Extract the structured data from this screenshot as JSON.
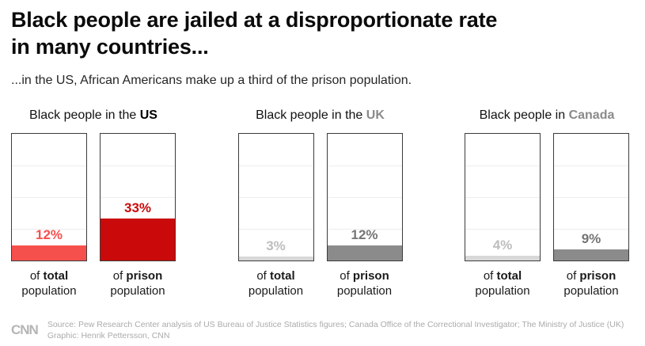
{
  "header": {
    "title_line1": "Black people are jailed at a disproportionate rate",
    "title_line2": "in many countries...",
    "subtitle": "...in the US, African Americans make up a third of the prison population."
  },
  "chart_data": {
    "type": "bar",
    "unit": "%",
    "ylim": [
      0,
      100
    ],
    "groups": [
      {
        "heading_prefix": "Black people in the ",
        "heading_country": "US",
        "heading_country_color": "#000000",
        "bars": [
          {
            "value": 12,
            "value_label": "12%",
            "fill_color": "#f6504d",
            "label_color": "#f6504d",
            "caption_prefix": "of ",
            "caption_bold": "total",
            "caption_line2": "population"
          },
          {
            "value": 33,
            "value_label": "33%",
            "fill_color": "#c9090a",
            "label_color": "#c9090a",
            "caption_prefix": "of ",
            "caption_bold": "prison",
            "caption_line2": "population"
          }
        ]
      },
      {
        "heading_prefix": "Black people in the ",
        "heading_country": "UK",
        "heading_country_color": "#8a8a8a",
        "bars": [
          {
            "value": 3,
            "value_label": "3%",
            "fill_color": "#d8d8d8",
            "label_color": "#bdbdbd",
            "caption_prefix": "of ",
            "caption_bold": "total",
            "caption_line2": "population"
          },
          {
            "value": 12,
            "value_label": "12%",
            "fill_color": "#8b8b8b",
            "label_color": "#757575",
            "caption_prefix": "of ",
            "caption_bold": "prison",
            "caption_line2": "population"
          }
        ]
      },
      {
        "heading_prefix": "Black people in ",
        "heading_country": "Canada",
        "heading_country_color": "#8a8a8a",
        "bars": [
          {
            "value": 4,
            "value_label": "4%",
            "fill_color": "#d8d8d8",
            "label_color": "#bdbdbd",
            "caption_prefix": "of ",
            "caption_bold": "total",
            "caption_line2": "population"
          },
          {
            "value": 9,
            "value_label": "9%",
            "fill_color": "#8b8b8b",
            "label_color": "#757575",
            "caption_prefix": "of ",
            "caption_bold": "prison",
            "caption_line2": "population"
          }
        ]
      }
    ]
  },
  "footer": {
    "logo": "CNN",
    "source": "Source: Pew Research Center analysis of US Bureau of Justice Statistics figures; Canada Office of the Correctional Investigator; The Ministry of Justice (UK)",
    "credit": "Graphic: Henrik Pettersson, CNN"
  }
}
